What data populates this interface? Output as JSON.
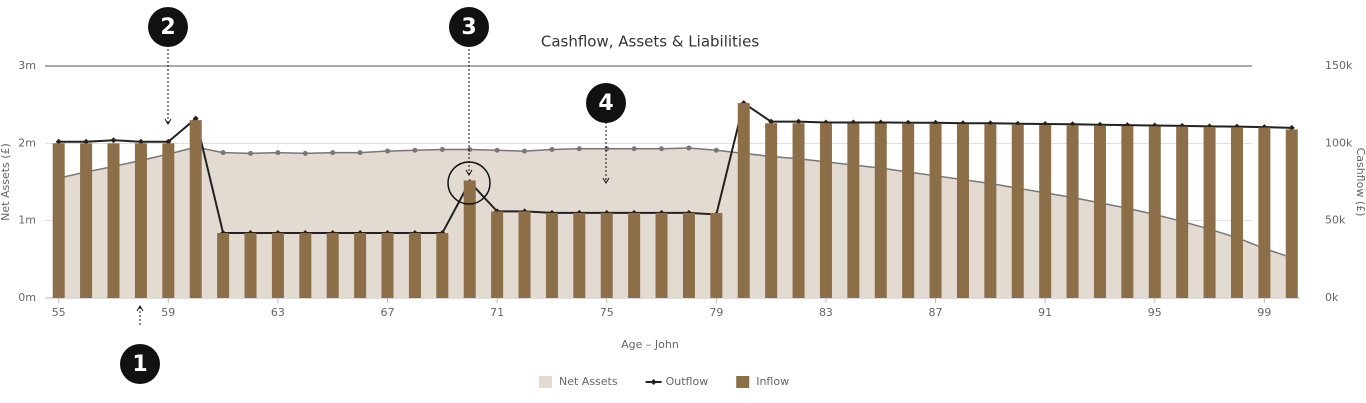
{
  "chart_data": {
    "type": "combo",
    "title": "Cashflow, Assets & Liabilities",
    "x_label": "Age – John",
    "y_label": "Net Assets (£)",
    "y2_label": "Cashflow (£)",
    "x": [
      55,
      56,
      57,
      58,
      59,
      60,
      61,
      62,
      63,
      64,
      65,
      66,
      67,
      68,
      69,
      70,
      71,
      72,
      73,
      74,
      75,
      76,
      77,
      78,
      79,
      80,
      81,
      82,
      83,
      84,
      85,
      86,
      87,
      88,
      89,
      90,
      91,
      92,
      93,
      94,
      95,
      96,
      97,
      98,
      99,
      100
    ],
    "xlim": [
      54.5,
      100.3
    ],
    "xticks": [
      55,
      59,
      63,
      67,
      71,
      75,
      79,
      83,
      87,
      91,
      95,
      99
    ],
    "ylim": [
      0,
      3
    ],
    "yticks": [
      {
        "value": 0,
        "label": "0m"
      },
      {
        "value": 1,
        "label": "1m"
      },
      {
        "value": 2,
        "label": "2m"
      },
      {
        "value": 3,
        "label": "3m"
      }
    ],
    "y2lim": [
      0,
      150
    ],
    "y2ticks": [
      {
        "value": 0,
        "label": "0k"
      },
      {
        "value": 50,
        "label": "50k"
      },
      {
        "value": 100,
        "label": "100k"
      },
      {
        "value": 150,
        "label": "150k"
      }
    ],
    "grid": true,
    "legend": "bottom",
    "series": [
      {
        "name": "Net Assets",
        "type": "area",
        "axis": "y",
        "color": "#e3dad2",
        "values": [
          1.55,
          1.63,
          1.7,
          1.78,
          1.86,
          1.95,
          1.88,
          1.87,
          1.88,
          1.87,
          1.88,
          1.88,
          1.9,
          1.91,
          1.92,
          1.92,
          1.91,
          1.9,
          1.92,
          1.93,
          1.93,
          1.93,
          1.93,
          1.94,
          1.91,
          1.87,
          1.83,
          1.8,
          1.76,
          1.72,
          1.68,
          1.63,
          1.58,
          1.53,
          1.48,
          1.42,
          1.36,
          1.3,
          1.23,
          1.16,
          1.08,
          0.99,
          0.89,
          0.78,
          0.64,
          0.52
        ]
      },
      {
        "name": "Outflow",
        "type": "line",
        "axis": "y2",
        "color": "#222222",
        "values": [
          101,
          101,
          102,
          101,
          101,
          116,
          42,
          42,
          42,
          42,
          42,
          42,
          42,
          42,
          42,
          75,
          56,
          56,
          55,
          55,
          55,
          55,
          55,
          55,
          54,
          126,
          114,
          114,
          113.5,
          113.5,
          113.5,
          113.3,
          113.3,
          113,
          113,
          112.7,
          112.5,
          112.3,
          112,
          111.8,
          111.5,
          111.3,
          111,
          110.8,
          110.5,
          110
        ]
      },
      {
        "name": "Inflow",
        "type": "bar",
        "axis": "y2",
        "color": "#8c6e48",
        "values": [
          100,
          100,
          100,
          100,
          100,
          115,
          42,
          42,
          42,
          42,
          42,
          42,
          42,
          42,
          42,
          76,
          56,
          56,
          55,
          55,
          55,
          55,
          55,
          55,
          55,
          126,
          113,
          113,
          113,
          112.8,
          112.8,
          112.6,
          112.6,
          112.4,
          112.2,
          112,
          111.8,
          111.6,
          111.4,
          111.2,
          111,
          110.8,
          110.6,
          110.4,
          110.2,
          109
        ]
      }
    ],
    "annotations": [
      "1",
      "2",
      "3",
      "4"
    ]
  }
}
